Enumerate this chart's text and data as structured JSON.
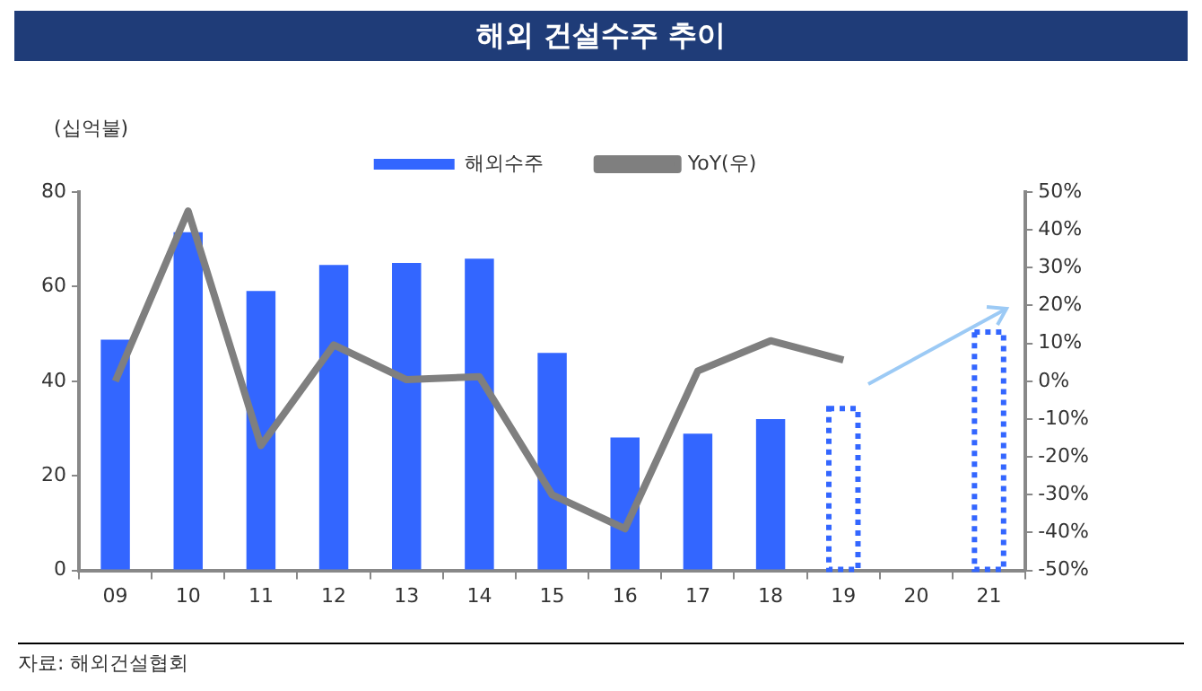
{
  "chart_data": {
    "type": "bar",
    "title": "해외 건설수주 추이",
    "ylabel": "(십억불)",
    "annotations": [
      "자료: 해외건설협회"
    ],
    "categories": [
      "09",
      "10",
      "11",
      "12",
      "13",
      "14",
      "15",
      "16",
      "17",
      "18",
      "19",
      "20",
      "21"
    ],
    "series": [
      {
        "name": "해외수주",
        "color": "#3366ff",
        "values": [
          48.8,
          71.5,
          59.1,
          64.6,
          65.0,
          65.9,
          46.0,
          28.1,
          28.9,
          32.0,
          null,
          null,
          null
        ]
      },
      {
        "color": "#3366ff",
        "line_style": "dotted",
        "values": [
          null,
          null,
          null,
          null,
          null,
          null,
          null,
          null,
          null,
          null,
          34.2,
          null,
          50.4
        ]
      },
      {
        "name": "YoY(우)",
        "type": "line",
        "axis": "y2",
        "color": "#7f7f7f",
        "values": [
          0,
          45,
          -17,
          9.6,
          0.4,
          1.2,
          -30,
          -39,
          2.7,
          10.7,
          5.6,
          null,
          null
        ]
      }
    ],
    "stacked": true,
    "ylim": [
      0,
      80
    ],
    "yticks": [
      0,
      20,
      40,
      60,
      80
    ],
    "y2lim": [
      -50,
      50
    ],
    "y2ticks": [
      {
        "value": -50,
        "label": "-50%"
      },
      {
        "value": -40,
        "label": "-40%"
      },
      {
        "value": -30,
        "label": "-30%"
      },
      {
        "value": -20,
        "label": "-20%"
      },
      {
        "value": -10,
        "label": "-10%"
      },
      {
        "value": 0,
        "label": "0%"
      },
      {
        "value": 10,
        "label": "10%"
      },
      {
        "value": 20,
        "label": "20%"
      },
      {
        "value": 30,
        "label": "30%"
      },
      {
        "value": 40,
        "label": "40%"
      },
      {
        "value": 50,
        "label": "50%"
      }
    ],
    "grid": false,
    "legend": "top",
    "marker": "none"
  }
}
